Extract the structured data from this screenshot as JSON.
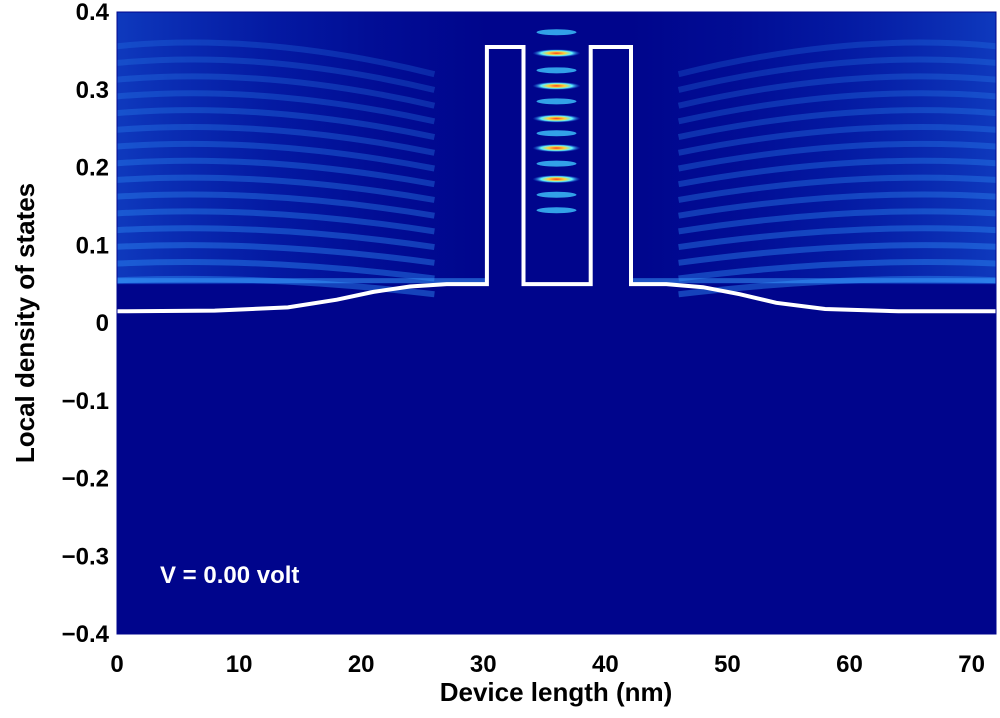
{
  "chart_data": {
    "type": "heatmap",
    "title": "",
    "xlabel": "Device length (nm)",
    "ylabel": "Local density of states",
    "xlim": [
      0,
      72
    ],
    "ylim": [
      -0.4,
      0.4
    ],
    "x_ticks": [
      0,
      10,
      20,
      30,
      40,
      50,
      60,
      70
    ],
    "x_tick_labels": [
      "0",
      "10",
      "20",
      "30",
      "40",
      "50",
      "60",
      "70"
    ],
    "y_ticks": [
      0.4,
      0.3,
      0.2,
      0.1,
      0,
      -0.1,
      -0.2,
      -0.3,
      -0.4
    ],
    "y_tick_labels": [
      "0.4",
      "0.3",
      "0.2",
      "0.1",
      "0",
      "−0.1",
      "−0.2",
      "−0.3",
      "−0.4"
    ],
    "annotation": "V = 0.00 volt",
    "background_color": "#00058c",
    "potential_line_color": "#ffffff",
    "potential_profile": {
      "x": [
        0,
        8,
        14,
        18,
        21,
        24,
        27,
        30.3,
        30.3,
        33.3,
        33.3,
        38.8,
        38.8,
        42.1,
        42.1,
        45,
        48,
        51,
        54,
        58,
        64,
        72
      ],
      "y": [
        0.015,
        0.016,
        0.02,
        0.03,
        0.04,
        0.047,
        0.05,
        0.05,
        0.355,
        0.355,
        0.05,
        0.05,
        0.355,
        0.355,
        0.05,
        0.05,
        0.046,
        0.037,
        0.026,
        0.018,
        0.015,
        0.015
      ]
    },
    "resonant_levels": [
      0.374,
      0.347,
      0.325,
      0.305,
      0.285,
      0.263,
      0.244,
      0.225,
      0.205,
      0.185,
      0.165,
      0.145
    ],
    "resonant_level_x": 36
  }
}
